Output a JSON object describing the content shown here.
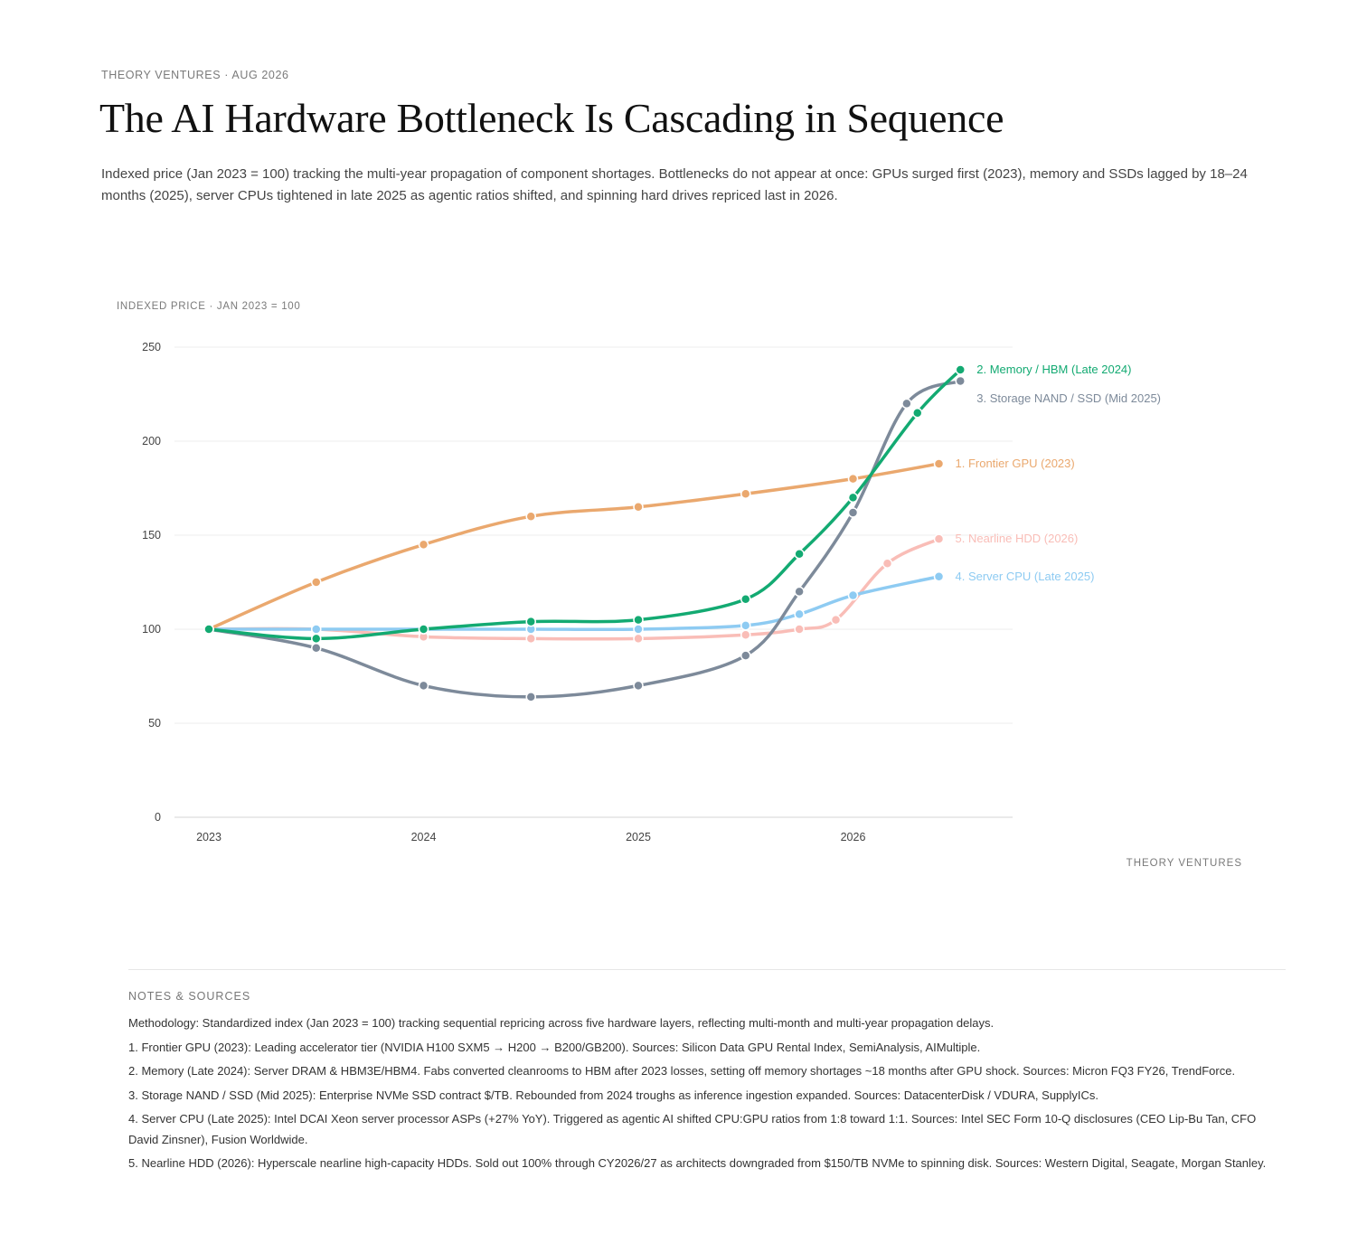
{
  "header": {
    "kicker": "THEORY VENTURES · AUG 2026",
    "title": "The AI Hardware Bottleneck Is Cascading in Sequence",
    "subtitle": "Indexed price (Jan 2023 = 100) tracking the multi-year propagation of component shortages. Bottlenecks do not appear at once: GPUs surged first (2023), memory and SSDs lagged by 18–24 months (2025), server CPUs tightened in late 2025 as agentic ratios shifted, and spinning hard drives repriced last in 2026."
  },
  "chart_data": {
    "type": "line",
    "ylabel": "INDEXED PRICE · JAN 2023 = 100",
    "xlabel": "",
    "ylim": [
      0,
      250
    ],
    "yticks": [
      0,
      50,
      100,
      150,
      200,
      250
    ],
    "xlim": [
      2023,
      2026.9
    ],
    "xticks": [
      2023,
      2024,
      2025,
      2026
    ],
    "grid": true,
    "legend": "inline labels at line ends",
    "series": [
      {
        "name": "1. Frontier GPU (2023)",
        "color": "#eaa86e",
        "x": [
          2023,
          2023.5,
          2024,
          2024.5,
          2025,
          2025.5,
          2026,
          2026.4
        ],
        "y": [
          100,
          125,
          145,
          160,
          165,
          172,
          180,
          188
        ]
      },
      {
        "name": "2. Memory / HBM (Late 2024)",
        "color": "#13aa72",
        "x": [
          2023,
          2023.5,
          2024,
          2024.5,
          2025,
          2025.5,
          2025.75,
          2026,
          2026.3,
          2026.5
        ],
        "y": [
          100,
          95,
          100,
          104,
          105,
          116,
          140,
          170,
          215,
          238
        ]
      },
      {
        "name": "3. Storage NAND / SSD (Mid 2025)",
        "color": "#7d8a9a",
        "x": [
          2023,
          2023.5,
          2024,
          2024.5,
          2025,
          2025.5,
          2025.75,
          2026,
          2026.25,
          2026.5
        ],
        "y": [
          100,
          90,
          70,
          64,
          70,
          86,
          120,
          162,
          220,
          232
        ]
      },
      {
        "name": "4. Server CPU (Late 2025)",
        "color": "#8ecbf2",
        "x": [
          2023,
          2023.5,
          2024,
          2024.5,
          2025,
          2025.5,
          2025.75,
          2026,
          2026.4
        ],
        "y": [
          100,
          100,
          100,
          100,
          100,
          102,
          108,
          118,
          128
        ]
      },
      {
        "name": "5. Nearline HDD (2026)",
        "color": "#f9bdb7",
        "x": [
          2023,
          2023.5,
          2024,
          2024.5,
          2025,
          2025.5,
          2025.75,
          2025.92,
          2026.16,
          2026.4
        ],
        "y": [
          100,
          100,
          96,
          95,
          95,
          97,
          100,
          105,
          135,
          148
        ]
      }
    ]
  },
  "brand": "THEORY VENTURES",
  "notes": {
    "title": "NOTES & SOURCES",
    "items": [
      "Methodology: Standardized index (Jan 2023 = 100) tracking sequential repricing across five hardware layers, reflecting multi-month and multi-year propagation delays.",
      "1. Frontier GPU (2023): Leading accelerator tier (NVIDIA H100 SXM5 → H200 → B200/GB200). Sources: Silicon Data GPU Rental Index, SemiAnalysis, AIMultiple.",
      "2. Memory (Late 2024): Server DRAM & HBM3E/HBM4. Fabs converted cleanrooms to HBM after 2023 losses, setting off memory shortages ~18 months after GPU shock. Sources: Micron FQ3 FY26, TrendForce.",
      "3. Storage NAND / SSD (Mid 2025): Enterprise NVMe SSD contract $/TB. Rebounded from 2024 troughs as inference ingestion expanded. Sources: DatacenterDisk / VDURA, SupplyICs.",
      "4. Server CPU (Late 2025): Intel DCAI Xeon server processor ASPs (+27% YoY). Triggered as agentic AI shifted CPU:GPU ratios from 1:8 toward 1:1. Sources: Intel SEC Form 10-Q disclosures (CEO Lip-Bu Tan, CFO David Zinsner), Fusion Worldwide.",
      "5. Nearline HDD (2026): Hyperscale nearline high-capacity HDDs. Sold out 100% through CY2026/27 as architects downgraded from $150/TB NVMe to spinning disk. Sources: Western Digital, Seagate, Morgan Stanley."
    ]
  }
}
